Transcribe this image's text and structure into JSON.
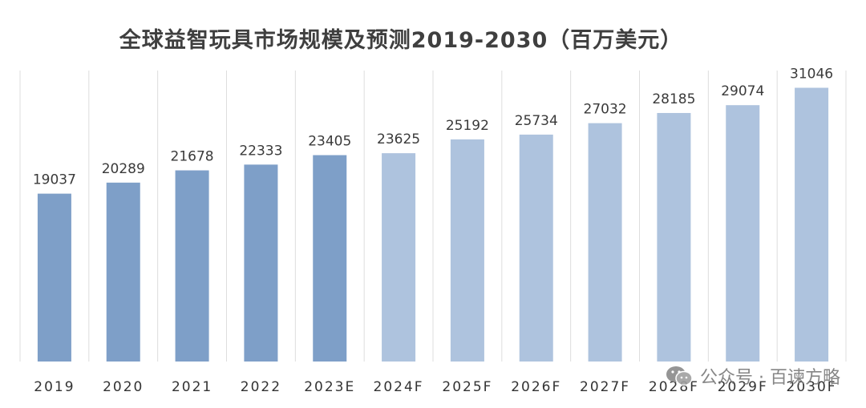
{
  "chart_data": {
    "type": "bar",
    "title": "全球益智玩具市场规模及预测2019-2030（百万美元）",
    "categories": [
      "2019",
      "2020",
      "2021",
      "2022",
      "2023E",
      "2024F",
      "2025F",
      "2026F",
      "2027F",
      "2028F",
      "2029F",
      "2030F"
    ],
    "values": [
      19037,
      20289,
      21678,
      22333,
      23405,
      23625,
      25192,
      25734,
      27032,
      28185,
      29074,
      31046
    ],
    "bar_kind": [
      "actual",
      "actual",
      "actual",
      "actual",
      "actual",
      "forecast",
      "forecast",
      "forecast",
      "forecast",
      "forecast",
      "forecast",
      "forecast"
    ],
    "ylim": [
      0,
      33000
    ],
    "xlabel": "",
    "ylabel": "",
    "grid": "vertical",
    "colors": {
      "actual": "#7e9fc8",
      "forecast": "#aec3de",
      "grid": "#dddddd"
    }
  },
  "watermark": {
    "text": "公众号 · 百谏方略",
    "icon": "wechat-icon"
  }
}
